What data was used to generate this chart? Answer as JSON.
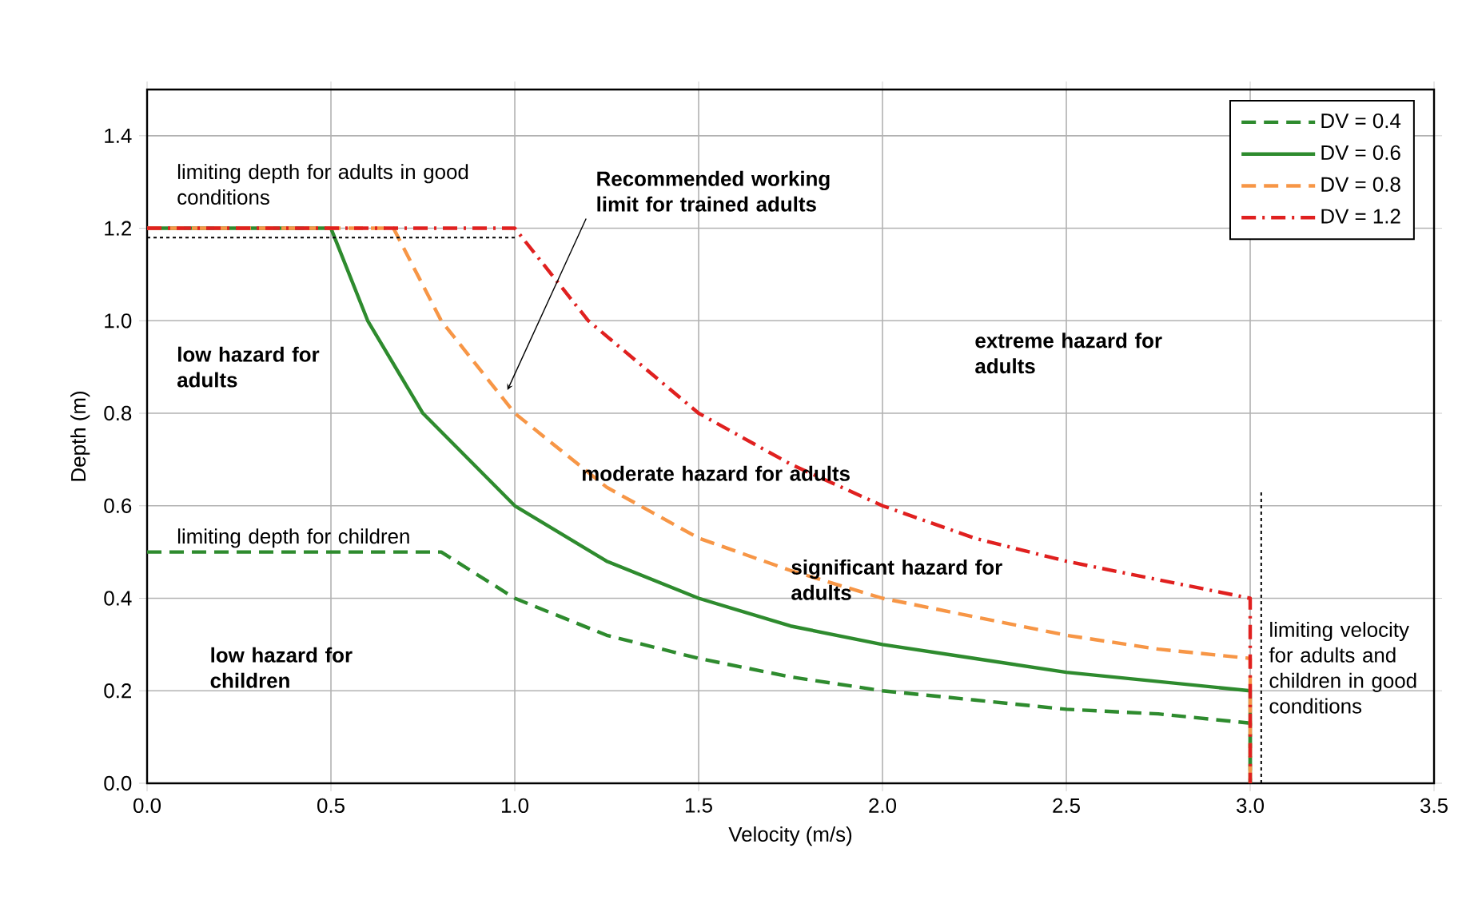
{
  "chart_data": {
    "type": "line",
    "xlabel": "Velocity (m/s)",
    "ylabel": "Depth (m)",
    "xlim": [
      0,
      3.5
    ],
    "ylim": [
      0,
      1.5
    ],
    "xticks": [
      {
        "value": 0,
        "label": "0.0"
      },
      {
        "value": 0.5,
        "label": "0.5"
      },
      {
        "value": 1,
        "label": "1.0"
      },
      {
        "value": 1.5,
        "label": "1.5"
      },
      {
        "value": 2,
        "label": "2.0"
      },
      {
        "value": 2.5,
        "label": "2.5"
      },
      {
        "value": 3,
        "label": "3.0"
      },
      {
        "value": 3.5,
        "label": "3.5"
      }
    ],
    "yticks": [
      {
        "value": 0,
        "label": "0.0"
      },
      {
        "value": 0.2,
        "label": "0.2"
      },
      {
        "value": 0.4,
        "label": "0.4"
      },
      {
        "value": 0.6,
        "label": "0.6"
      },
      {
        "value": 0.8,
        "label": "0.8"
      },
      {
        "value": 1,
        "label": "1.0"
      },
      {
        "value": 1.2,
        "label": "1.2"
      },
      {
        "value": 1.4,
        "label": "1.4"
      }
    ],
    "grid": true,
    "legend": "top right",
    "marker": "none",
    "series": [
      {
        "name": "DV = 0.4",
        "color": "#2e8b2e",
        "line_style": "dashed",
        "x": [
          0,
          0.8,
          1,
          1.25,
          1.5,
          1.75,
          2,
          2.25,
          2.5,
          2.75,
          3,
          3
        ],
        "values": [
          0.5,
          0.5,
          0.4,
          0.32,
          0.27,
          0.23,
          0.2,
          0.18,
          0.16,
          0.15,
          0.13,
          0
        ]
      },
      {
        "name": "DV = 0.6",
        "color": "#2e8b2e",
        "line_style": "solid",
        "x": [
          0,
          0.5,
          0.6,
          0.75,
          1,
          1.25,
          1.5,
          1.75,
          2,
          2.25,
          2.5,
          2.75,
          3,
          3
        ],
        "values": [
          1.2,
          1.2,
          1.0,
          0.8,
          0.6,
          0.48,
          0.4,
          0.34,
          0.3,
          0.27,
          0.24,
          0.22,
          0.2,
          0
        ]
      },
      {
        "name": "DV = 0.8",
        "color": "#f79646",
        "line_style": "dashed",
        "x": [
          0,
          0.67,
          0.8,
          1,
          1.25,
          1.5,
          1.75,
          2,
          2.25,
          2.5,
          2.75,
          3,
          3
        ],
        "values": [
          1.2,
          1.2,
          1.0,
          0.8,
          0.64,
          0.53,
          0.46,
          0.4,
          0.36,
          0.32,
          0.29,
          0.27,
          0
        ]
      },
      {
        "name": "DV = 1.2",
        "color": "#e0201f",
        "line_style": "dashdot",
        "x": [
          0,
          1,
          1.2,
          1.5,
          1.75,
          2,
          2.25,
          2.5,
          2.75,
          3,
          3
        ],
        "values": [
          1.2,
          1.2,
          1.0,
          0.8,
          0.69,
          0.6,
          0.53,
          0.48,
          0.44,
          0.4,
          0
        ]
      },
      {
        "color": "#000000",
        "line_style": "dotted",
        "x": [
          0,
          1
        ],
        "values": [
          1.18,
          1.18
        ]
      },
      {
        "color": "#000000",
        "line_style": "dotted",
        "x": [
          3.03,
          3.03
        ],
        "values": [
          0,
          0.63
        ]
      }
    ],
    "annotations": [
      "limiting depth for adults in good conditions",
      "limiting depth for children",
      "**Recommended working limit for trained adults**",
      "**low hazard for adults**",
      "**moderate hazard for adults**",
      "**significant hazard for adults**",
      "**extreme hazard for adults**",
      "**low hazard for children**",
      "limiting velocity for adults and children in good conditions"
    ]
  }
}
